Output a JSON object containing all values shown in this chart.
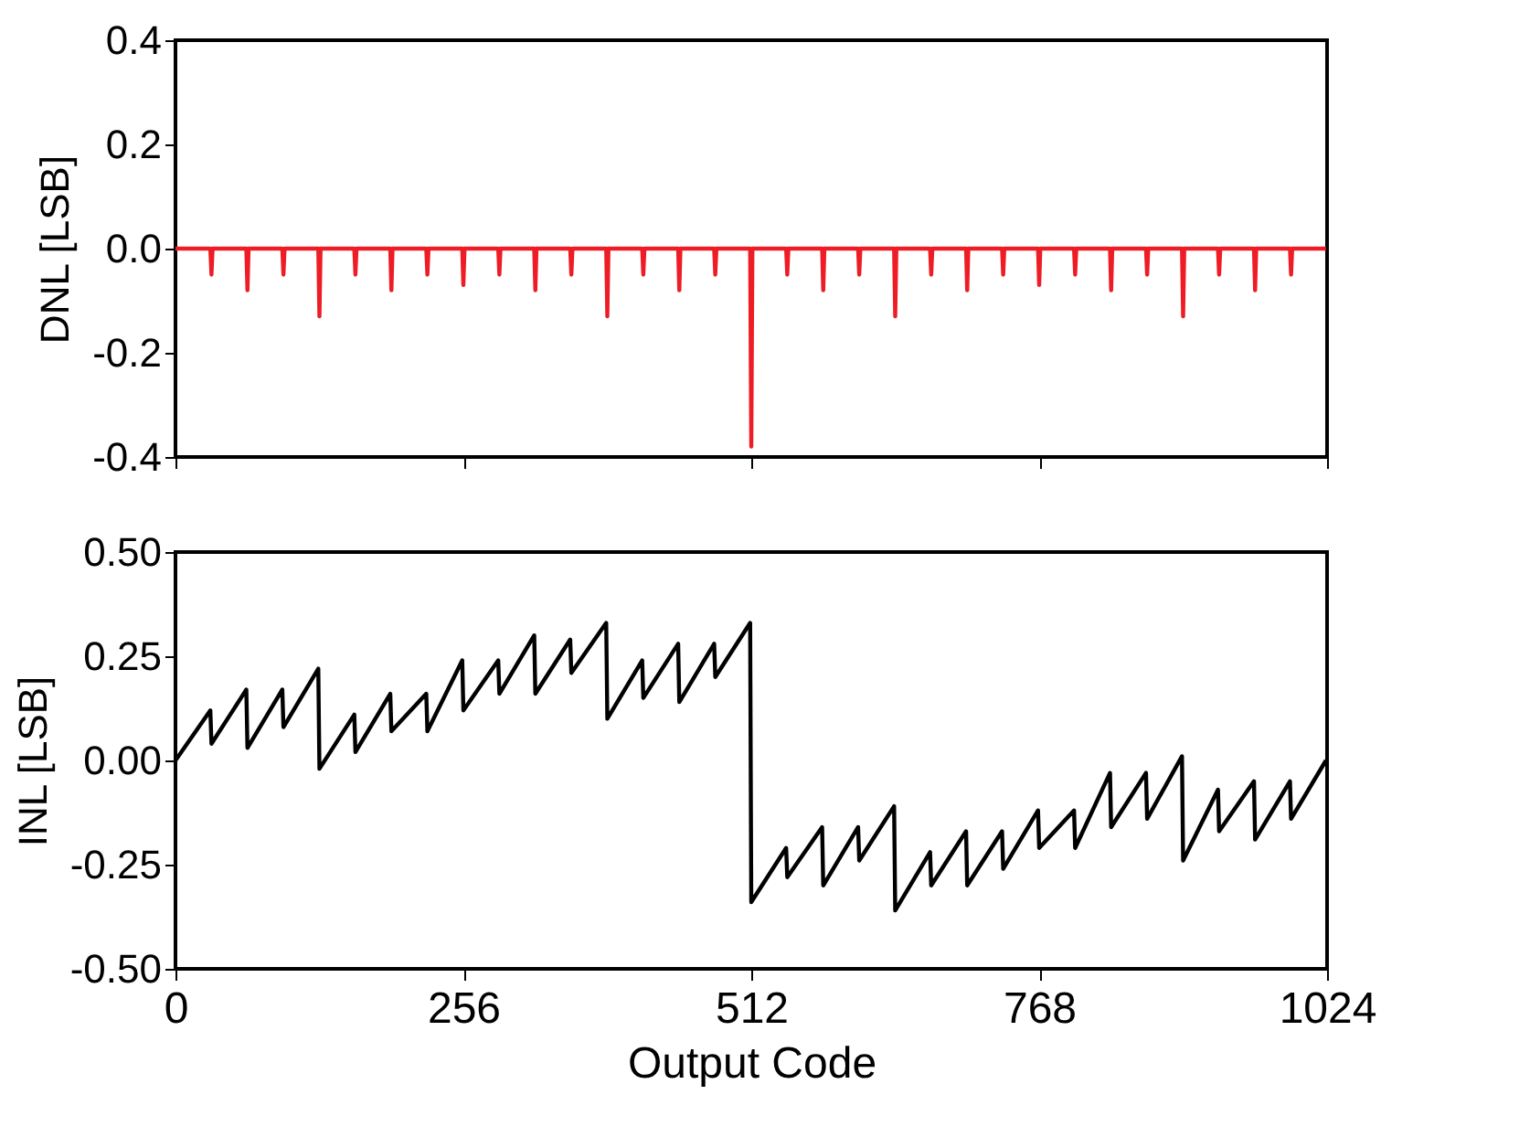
{
  "chart_data": [
    {
      "type": "line",
      "ylabel": "DNL [LSB]",
      "xlim": [
        0,
        1024
      ],
      "xticks": [
        0,
        256,
        512,
        768,
        1024
      ],
      "ylim": [
        -0.4,
        0.4
      ],
      "yticks": [
        {
          "value": -0.4,
          "label": "-0.4"
        },
        {
          "value": -0.2,
          "label": "-0.2"
        },
        {
          "value": 0,
          "label": "0.0"
        },
        {
          "value": 0.2,
          "label": "0.2"
        },
        {
          "value": 0.4,
          "label": "0.4"
        }
      ],
      "tick_labels": "y",
      "grid": false,
      "marker": "none",
      "line_style": "solid",
      "series": [
        {
          "color": "#ee1c24",
          "x": [
            0,
            31,
            32,
            33,
            63,
            64,
            65,
            95,
            96,
            97,
            127,
            128,
            129,
            159,
            160,
            161,
            191,
            192,
            193,
            223,
            224,
            225,
            255,
            256,
            257,
            287,
            288,
            289,
            319,
            320,
            321,
            351,
            352,
            353,
            383,
            384,
            385,
            415,
            416,
            417,
            447,
            448,
            449,
            479,
            480,
            481,
            511,
            512,
            513,
            543,
            544,
            545,
            575,
            576,
            577,
            607,
            608,
            609,
            639,
            640,
            641,
            671,
            672,
            673,
            703,
            704,
            705,
            735,
            736,
            737,
            767,
            768,
            769,
            799,
            800,
            801,
            831,
            832,
            833,
            863,
            864,
            865,
            895,
            896,
            897,
            927,
            928,
            929,
            959,
            960,
            961,
            991,
            992,
            993,
            1023
          ],
          "values": [
            0,
            0,
            -0.05,
            0,
            0,
            -0.08,
            0,
            0,
            -0.05,
            0,
            0,
            -0.13,
            0,
            0,
            -0.05,
            0,
            0,
            -0.08,
            0,
            0,
            -0.05,
            0,
            0,
            -0.07,
            0,
            0,
            -0.05,
            0,
            0,
            -0.08,
            0,
            0,
            -0.05,
            0,
            0,
            -0.13,
            0,
            0,
            -0.05,
            0,
            0,
            -0.08,
            0,
            0,
            -0.05,
            0,
            0,
            -0.38,
            0,
            0,
            -0.05,
            0,
            0,
            -0.08,
            0,
            0,
            -0.05,
            0,
            0,
            -0.13,
            0,
            0,
            -0.05,
            0,
            0,
            -0.08,
            0,
            0,
            -0.05,
            0,
            0,
            -0.07,
            0,
            0,
            -0.05,
            0,
            0,
            -0.08,
            0,
            0,
            -0.05,
            0,
            0,
            -0.13,
            0,
            0,
            -0.05,
            0,
            0,
            -0.08,
            0,
            0,
            -0.05,
            0,
            0
          ]
        }
      ]
    },
    {
      "type": "line",
      "xlabel": "Output Code",
      "ylabel": "INL [LSB]",
      "xlim": [
        0,
        1024
      ],
      "xticks": [
        0,
        256,
        512,
        768,
        1024
      ],
      "ylim": [
        -0.5,
        0.5
      ],
      "yticks": [
        {
          "value": -0.5,
          "label": "-0.50"
        },
        {
          "value": -0.25,
          "label": "-0.25"
        },
        {
          "value": 0,
          "label": "0.00"
        },
        {
          "value": 0.25,
          "label": "0.25"
        },
        {
          "value": 0.5,
          "label": "0.50"
        }
      ],
      "grid": false,
      "marker": "none",
      "line_style": "solid",
      "series": [
        {
          "color": "#000000",
          "x": [
            0,
            31,
            32,
            63,
            64,
            95,
            96,
            127,
            128,
            159,
            160,
            191,
            192,
            223,
            224,
            255,
            256,
            287,
            288,
            319,
            320,
            351,
            352,
            383,
            384,
            415,
            416,
            447,
            448,
            479,
            480,
            511,
            512,
            543,
            544,
            575,
            576,
            607,
            608,
            639,
            640,
            671,
            672,
            703,
            704,
            735,
            736,
            767,
            768,
            799,
            800,
            831,
            832,
            863,
            864,
            895,
            896,
            927,
            928,
            959,
            960,
            991,
            992,
            1023
          ],
          "values": [
            0,
            0.12,
            0.04,
            0.17,
            0.03,
            0.17,
            0.08,
            0.22,
            -0.02,
            0.11,
            0.02,
            0.16,
            0.07,
            0.16,
            0.07,
            0.24,
            0.12,
            0.24,
            0.16,
            0.3,
            0.16,
            0.29,
            0.21,
            0.33,
            0.1,
            0.24,
            0.15,
            0.28,
            0.14,
            0.28,
            0.2,
            0.33,
            -0.34,
            -0.21,
            -0.28,
            -0.16,
            -0.3,
            -0.16,
            -0.24,
            -0.11,
            -0.36,
            -0.22,
            -0.3,
            -0.17,
            -0.3,
            -0.17,
            -0.26,
            -0.12,
            -0.21,
            -0.12,
            -0.21,
            -0.03,
            -0.16,
            -0.03,
            -0.14,
            0.01,
            -0.24,
            -0.07,
            -0.17,
            -0.05,
            -0.19,
            -0.05,
            -0.14,
            0
          ]
        }
      ]
    }
  ]
}
